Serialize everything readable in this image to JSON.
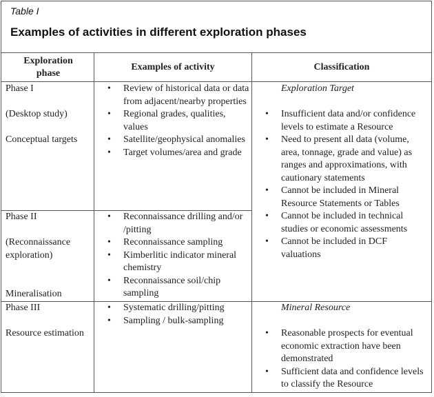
{
  "header": {
    "label": "Table I",
    "title": "Examples of activities in different exploration phases"
  },
  "table": {
    "columns": [
      "Exploration phase",
      "Examples of activity",
      "Classification"
    ],
    "rows": [
      {
        "phase": [
          "Phase I",
          "(Desktop study)",
          "Conceptual targets"
        ],
        "activities": [
          "Review of historical data or data from adjacent/nearby properties",
          "Regional grades, qualities, values",
          "Satellite/geophysical anomalies",
          "Target volumes/area and grade"
        ]
      },
      {
        "phase": [
          "Phase II",
          "(Reconnaissance exploration)",
          "Mineralisation"
        ],
        "activities": [
          "Reconnaissance drilling and/or /pitting",
          "Reconnaissance sampling",
          "Kimberlitic indicator mineral chemistry",
          "Reconnaissance soil/chip sampling"
        ]
      },
      {
        "phase": [
          "Phase III",
          "Resource estimation"
        ],
        "activities": [
          "Systematic drilling/pitting",
          "Sampling / bulk-sampling"
        ]
      }
    ],
    "classifications": [
      {
        "heading": "Exploration Target",
        "bullets": [
          "Insufficient data and/or confidence levels to estimate a Resource",
          "Need to present all data (volume, area, tonnage, grade and value) as ranges and approximations, with cautionary statements",
          "Cannot be included in Mineral Resource Statements or Tables",
          "Cannot be included in technical studies or economic assessments",
          "Cannot be included in DCF valuations"
        ]
      },
      {
        "heading": "Mineral Resource",
        "bullets": [
          "Reasonable prospects for eventual economic extraction have been demonstrated",
          "Sufficient data and confidence levels to classify the Resource"
        ]
      }
    ]
  }
}
